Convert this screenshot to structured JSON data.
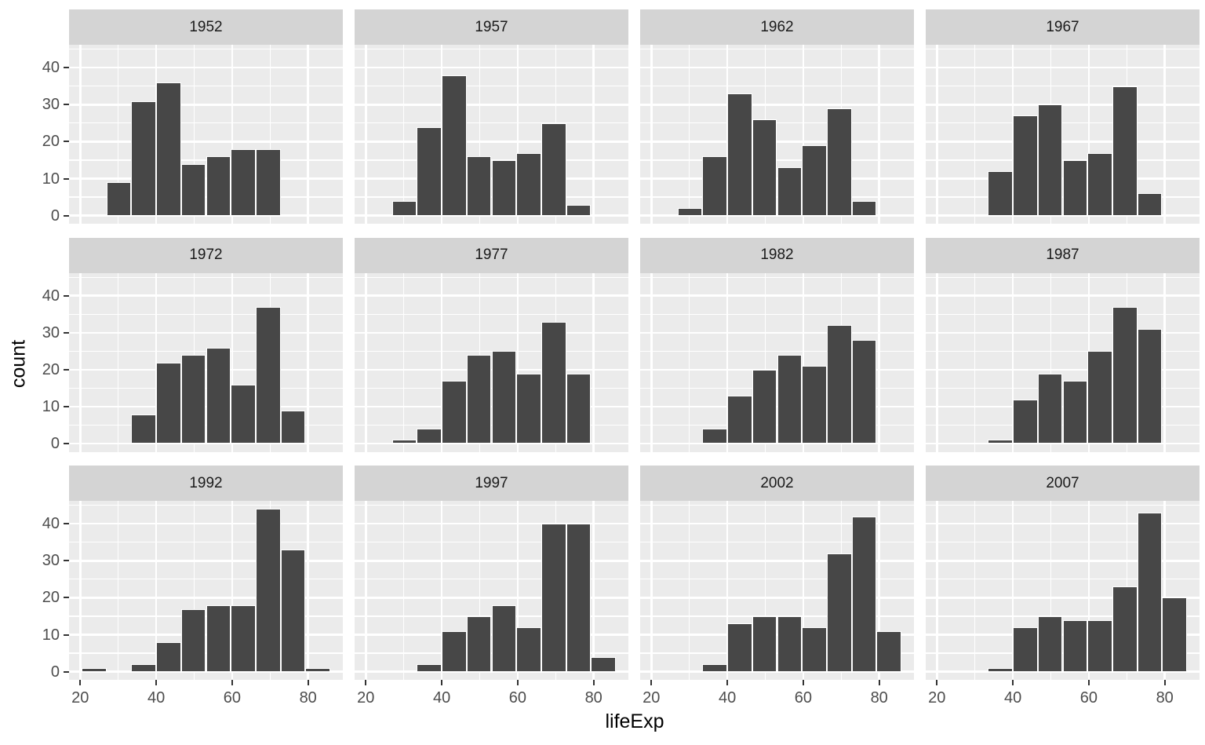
{
  "chart_data": {
    "type": "bar",
    "subtype": "faceted-histogram",
    "title": "",
    "xlabel": "lifeExp",
    "ylabel": "count",
    "x_ticks": [
      20,
      40,
      60,
      80
    ],
    "x_minor_ticks": [
      30,
      50,
      70
    ],
    "y_ticks": [
      0,
      10,
      20,
      30,
      40
    ],
    "y_minor_ticks": [
      5,
      15,
      25,
      35,
      45
    ],
    "x_domain": [
      17.04,
      89.16
    ],
    "y_domain": [
      -2.2,
      46.2
    ],
    "bin_width": 6.556,
    "bin_edges": [
      20.32,
      26.88,
      33.43,
      39.99,
      46.54,
      53.1,
      59.66,
      66.21,
      72.77,
      79.32,
      85.88
    ],
    "grid": "on",
    "legend": "none",
    "facets": [
      {
        "label": "1952",
        "counts": [
          0,
          9,
          31,
          36,
          14,
          16,
          18,
          18,
          0,
          0
        ]
      },
      {
        "label": "1957",
        "counts": [
          0,
          4,
          24,
          38,
          16,
          15,
          17,
          25,
          3,
          0
        ]
      },
      {
        "label": "1962",
        "counts": [
          0,
          2,
          16,
          33,
          26,
          13,
          19,
          29,
          4,
          0
        ]
      },
      {
        "label": "1967",
        "counts": [
          0,
          0,
          12,
          27,
          30,
          15,
          17,
          35,
          6,
          0
        ]
      },
      {
        "label": "1972",
        "counts": [
          0,
          0,
          8,
          22,
          24,
          26,
          16,
          37,
          9,
          0
        ]
      },
      {
        "label": "1977",
        "counts": [
          0,
          1,
          4,
          17,
          24,
          25,
          19,
          33,
          19,
          0
        ]
      },
      {
        "label": "1982",
        "counts": [
          0,
          0,
          4,
          13,
          20,
          24,
          21,
          32,
          28,
          0
        ]
      },
      {
        "label": "1987",
        "counts": [
          0,
          0,
          1,
          12,
          19,
          17,
          25,
          37,
          31,
          0
        ]
      },
      {
        "label": "1992",
        "counts": [
          1,
          0,
          2,
          8,
          17,
          18,
          18,
          44,
          33,
          1
        ]
      },
      {
        "label": "1997",
        "counts": [
          0,
          0,
          2,
          11,
          15,
          18,
          12,
          40,
          40,
          4
        ]
      },
      {
        "label": "2002",
        "counts": [
          0,
          0,
          2,
          13,
          15,
          15,
          12,
          32,
          42,
          11
        ]
      },
      {
        "label": "2007",
        "counts": [
          0,
          0,
          1,
          12,
          15,
          14,
          14,
          23,
          43,
          20
        ]
      }
    ],
    "colors": {
      "bar_fill": "#474747",
      "bar_stroke": "#ffffff",
      "panel_bg": "#ebebeb",
      "strip_bg": "#d4d4d4",
      "gridline": "#ffffff",
      "axis_text": "#4d4d4d",
      "axis_title": "#000000",
      "strip_text": "#1a1a1a"
    }
  }
}
